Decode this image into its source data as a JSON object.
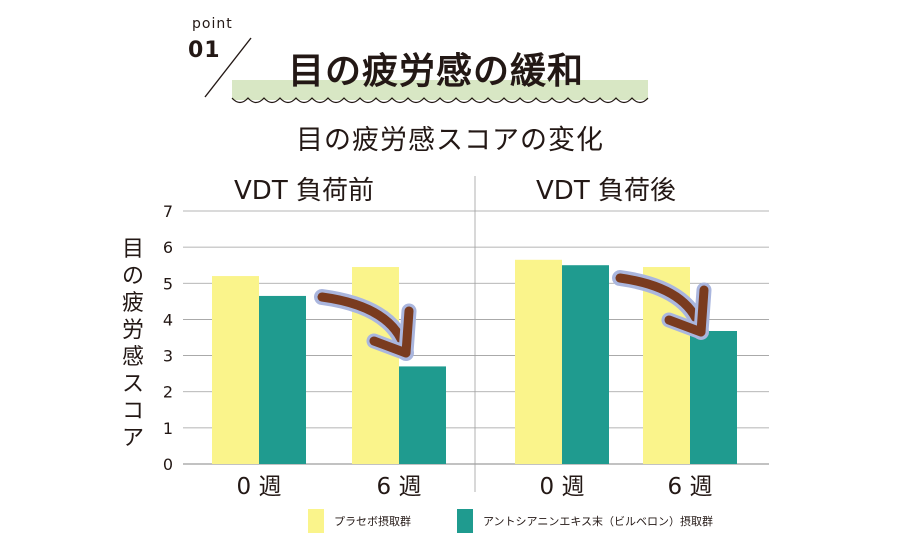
{
  "header": {
    "point_word": "point",
    "point_number": "01",
    "headline": "目の疲労感の緩和"
  },
  "colors": {
    "placebo": "#FAF48B",
    "bilberry": "#1F9B8F",
    "banner": "#D8E7C4",
    "arrow": "#7A3B1F",
    "arrow_glow": "#AAB6DE",
    "grid": "#9E9E9E",
    "text": "#231815"
  },
  "chart_data": {
    "type": "bar",
    "title": "目の疲労感スコアの変化",
    "ylabel": "目の疲労感スコア",
    "ylim": [
      0,
      7
    ],
    "yticks": [
      0,
      1,
      2,
      3,
      4,
      5,
      6,
      7
    ],
    "grid": true,
    "legend_position": "bottom",
    "panels": [
      {
        "title": "VDT 負荷前",
        "categories": [
          "0 週",
          "6 週"
        ],
        "series": [
          {
            "name": "プラセボ摂取群",
            "values": [
              5.2,
              5.45
            ]
          },
          {
            "name": "アントシアニンエキス末（ビルベロン）摂取群",
            "values": [
              4.65,
              2.7
            ]
          }
        ]
      },
      {
        "title": "VDT 負荷後",
        "categories": [
          "0 週",
          "6 週"
        ],
        "series": [
          {
            "name": "プラセボ摂取群",
            "values": [
              5.65,
              5.45
            ]
          },
          {
            "name": "アントシアニンエキス末（ビルベロン）摂取群",
            "values": [
              5.5,
              3.68
            ]
          }
        ]
      }
    ]
  }
}
